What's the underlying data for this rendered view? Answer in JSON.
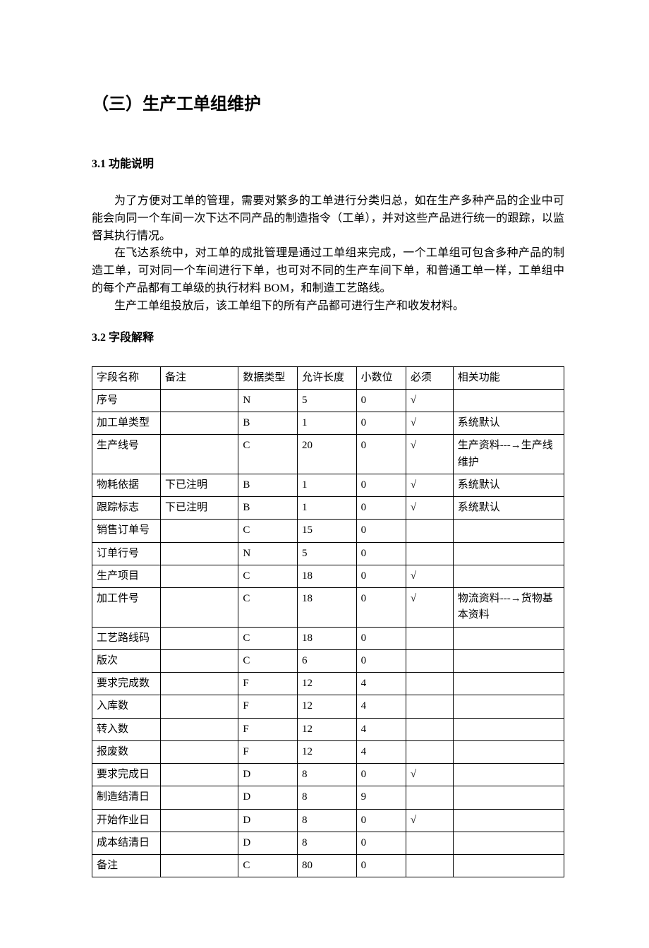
{
  "document": {
    "title": "（三）生产工单组维护",
    "section1": {
      "heading": "3.1 功能说明",
      "paragraphs": [
        "为了方便对工单的管理，需要对繁多的工单进行分类归总，如在生产多种产品的企业中可能会向同一个车间一次下达不同产品的制造指令（工单），并对这些产品进行统一的跟踪，以监督其执行情况。",
        "在飞达系统中，对工单的成批管理是通过工单组来完成，一个工单组可包含多种产品的制造工单，可对同一个车间进行下单，也可对不同的生产车间下单，和普通工单一样，工单组中的每个产品都有工单级的执行材料 BOM，和制造工艺路线。",
        "生产工单组投放后，该工单组下的所有产品都可进行生产和收发材料。"
      ]
    },
    "section2": {
      "heading": "3.2 字段解释",
      "table": {
        "type": "table",
        "border_color": "#000000",
        "background_color": "#ffffff",
        "text_color": "#000000",
        "font_size": 15,
        "columns": [
          "字段名称",
          "备注",
          "数据类型",
          "允许长度",
          "小数位",
          "必须",
          "相关功能"
        ],
        "column_widths_pct": [
          14.5,
          16.5,
          12.5,
          12.5,
          10.5,
          10,
          23.5
        ],
        "rows": [
          [
            "序号",
            "",
            "N",
            "5",
            "0",
            "√",
            ""
          ],
          [
            "加工单类型",
            "",
            "B",
            "1",
            "0",
            "√",
            "系统默认"
          ],
          [
            "生产线号",
            "",
            "C",
            "20",
            "0",
            "√",
            "生产资料---→生产线维护"
          ],
          [
            "物耗依据",
            "下已注明",
            "B",
            "1",
            "0",
            "√",
            "系统默认"
          ],
          [
            "跟踪标志",
            "下已注明",
            "B",
            "1",
            "0",
            "√",
            "系统默认"
          ],
          [
            "销售订单号",
            "",
            "C",
            "15",
            "0",
            "",
            ""
          ],
          [
            "订单行号",
            "",
            "N",
            "5",
            "0",
            "",
            ""
          ],
          [
            "生产项目",
            "",
            "C",
            "18",
            "0",
            "√",
            ""
          ],
          [
            "加工件号",
            "",
            "C",
            "18",
            "0",
            "√",
            "物流资料---→货物基本资料"
          ],
          [
            "工艺路线码",
            "",
            "C",
            "18",
            "0",
            "",
            ""
          ],
          [
            "版次",
            "",
            "C",
            "6",
            "0",
            "",
            ""
          ],
          [
            "要求完成数",
            "",
            "F",
            "12",
            "4",
            "",
            ""
          ],
          [
            "入库数",
            "",
            "F",
            "12",
            "4",
            "",
            ""
          ],
          [
            "转入数",
            "",
            "F",
            "12",
            "4",
            "",
            ""
          ],
          [
            "报废数",
            "",
            "F",
            "12",
            "4",
            "",
            ""
          ],
          [
            "要求完成日",
            "",
            "D",
            "8",
            "0",
            "√",
            ""
          ],
          [
            "制造结清日",
            "",
            "D",
            "8",
            "9",
            "",
            ""
          ],
          [
            "开始作业日",
            "",
            "D",
            "8",
            "0",
            "√",
            ""
          ],
          [
            "成本结清日",
            "",
            "D",
            "8",
            "0",
            "",
            ""
          ],
          [
            "备注",
            "",
            "C",
            "80",
            "0",
            "",
            ""
          ]
        ]
      }
    }
  }
}
